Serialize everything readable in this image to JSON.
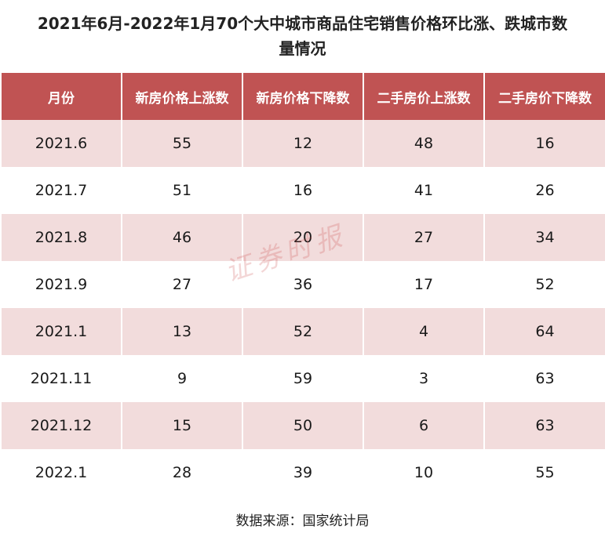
{
  "title_line1": "2021年6月-2022年1月70个大中城市商品住宅销售价格环比涨、跌城市数",
  "title_line2": "量情况",
  "watermark": "证券时报",
  "source": "数据来源：国家统计局",
  "colors": {
    "header_bg": "#c05353",
    "stripe_bg": "#f2dcdc"
  },
  "chart_data": {
    "type": "table",
    "columns": [
      "月份",
      "新房价格上涨数",
      "新房价格下降数",
      "二手房价上涨数",
      "二手房价下降数"
    ],
    "rows": [
      [
        "2021.6",
        "55",
        "12",
        "48",
        "16"
      ],
      [
        "2021.7",
        "51",
        "16",
        "41",
        "26"
      ],
      [
        "2021.8",
        "46",
        "20",
        "27",
        "34"
      ],
      [
        "2021.9",
        "27",
        "36",
        "17",
        "52"
      ],
      [
        "2021.1",
        "13",
        "52",
        "4",
        "64"
      ],
      [
        "2021.11",
        "9",
        "59",
        "3",
        "63"
      ],
      [
        "2021.12",
        "15",
        "50",
        "6",
        "63"
      ],
      [
        "2022.1",
        "28",
        "39",
        "10",
        "55"
      ]
    ]
  }
}
